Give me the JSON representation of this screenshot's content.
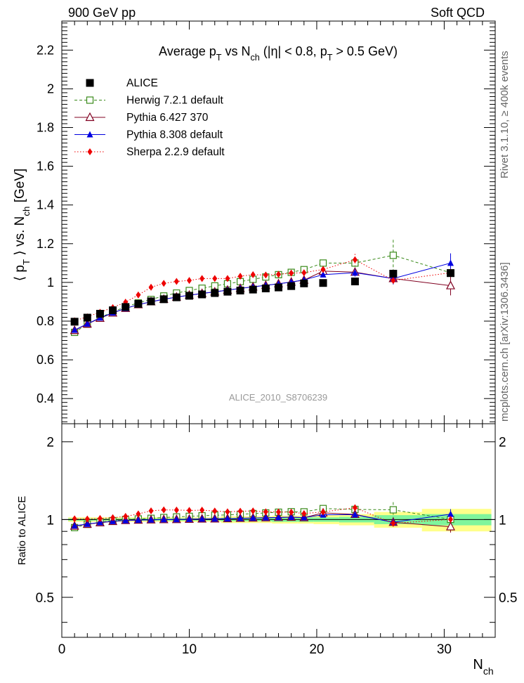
{
  "header": {
    "left": "900 GeV pp",
    "right": "Soft QCD"
  },
  "side_labels": {
    "rivet": "Rivet 3.1.10, ≥ 400k events",
    "mcplots": "mcplots.cern.ch [arXiv:1306.3436]"
  },
  "chart_data": {
    "type": "scatter",
    "title": "Average p_T vs N_ch (|η| < 0.8, p_T > 0.5 GeV)",
    "analysis_label": "ALICE_2010_S8706239",
    "xlabel": "N_ch",
    "ylabel": "⟨ p_T ⟩ vs. N_ch [GeV]",
    "ratio_ylabel": "Ratio to ALICE",
    "xlim": [
      0,
      34
    ],
    "ylim": [
      0.27,
      2.35
    ],
    "ratio_ylim": [
      0.35,
      2.35
    ],
    "x_ticks": [
      0,
      10,
      20,
      30
    ],
    "y_ticks": [
      0.4,
      0.6,
      0.8,
      1,
      1.2,
      1.4,
      1.6,
      1.8,
      2,
      2.2
    ],
    "ratio_ticks": [
      0.5,
      1,
      2
    ],
    "legend_position": "top-left",
    "x": [
      1,
      2,
      3,
      4,
      5,
      6,
      7,
      8,
      9,
      10,
      11,
      12,
      13,
      14,
      15,
      16,
      17,
      18,
      19,
      20.5,
      23,
      26,
      30.5
    ],
    "data": {
      "name": "ALICE",
      "values": [
        0.797,
        0.818,
        0.838,
        0.856,
        0.873,
        0.889,
        0.902,
        0.913,
        0.923,
        0.931,
        0.938,
        0.945,
        0.952,
        0.958,
        0.963,
        0.969,
        0.974,
        0.981,
        0.995,
        0.997,
        1.005,
        1.045,
        1.048
      ],
      "band_inner": [
        0.01,
        0.01,
        0.01,
        0.01,
        0.01,
        0.01,
        0.01,
        0.01,
        0.01,
        0.01,
        0.01,
        0.01,
        0.015,
        0.015,
        0.015,
        0.015,
        0.02,
        0.02,
        0.02,
        0.02,
        0.025,
        0.04,
        0.05
      ],
      "band_outer": [
        0.02,
        0.02,
        0.02,
        0.02,
        0.02,
        0.02,
        0.02,
        0.02,
        0.02,
        0.02,
        0.02,
        0.02,
        0.03,
        0.03,
        0.03,
        0.03,
        0.035,
        0.035,
        0.035,
        0.04,
        0.05,
        0.07,
        0.1
      ]
    },
    "series": [
      {
        "name": "Herwig 7.2.1 default",
        "color": "#3a8a1a",
        "marker": "open-square",
        "line": "dashed",
        "values": [
          0.742,
          0.784,
          0.818,
          0.848,
          0.874,
          0.894,
          0.912,
          0.93,
          0.945,
          0.958,
          0.97,
          0.982,
          0.993,
          1.004,
          1.016,
          1.028,
          1.04,
          1.052,
          1.066,
          1.1,
          1.1,
          1.14,
          1.05
        ],
        "err": [
          0,
          0,
          0,
          0,
          0,
          0,
          0,
          0,
          0,
          0,
          0,
          0,
          0,
          0,
          0,
          0,
          0,
          0,
          0,
          0.01,
          0.02,
          0.08,
          0.02
        ]
      },
      {
        "name": "Pythia 6.427 370",
        "color": "#800020",
        "marker": "open-triangle",
        "line": "solid",
        "values": [
          0.752,
          0.785,
          0.815,
          0.842,
          0.866,
          0.885,
          0.9,
          0.913,
          0.924,
          0.934,
          0.943,
          0.951,
          0.96,
          0.969,
          0.977,
          0.985,
          0.993,
          1.002,
          1.012,
          1.058,
          1.053,
          1.02,
          0.983
        ],
        "err": [
          0,
          0,
          0,
          0,
          0,
          0,
          0,
          0,
          0,
          0,
          0,
          0,
          0,
          0,
          0,
          0,
          0,
          0,
          0,
          0.01,
          0.02,
          0.03,
          0.05
        ]
      },
      {
        "name": "Pythia 8.308 default",
        "color": "#0000e0",
        "marker": "filled-triangle",
        "line": "solid",
        "values": [
          0.754,
          0.786,
          0.817,
          0.843,
          0.866,
          0.885,
          0.9,
          0.913,
          0.924,
          0.934,
          0.943,
          0.951,
          0.96,
          0.969,
          0.977,
          0.985,
          0.993,
          1.002,
          1.013,
          1.04,
          1.05,
          1.02,
          1.1
        ],
        "err": [
          0,
          0,
          0,
          0,
          0,
          0,
          0,
          0,
          0,
          0,
          0,
          0,
          0,
          0,
          0,
          0,
          0,
          0,
          0,
          0.01,
          0.02,
          0.03,
          0.05
        ]
      },
      {
        "name": "Sherpa 2.2.9 default",
        "color": "#ee0000",
        "marker": "filled-diamond",
        "line": "dotted",
        "values": [
          0.802,
          0.822,
          0.846,
          0.87,
          0.898,
          0.935,
          0.975,
          0.995,
          1.005,
          1.01,
          1.02,
          1.02,
          1.02,
          1.032,
          1.04,
          1.038,
          1.042,
          1.048,
          1.05,
          1.067,
          1.117,
          1.01,
          1.05
        ],
        "err": [
          0,
          0,
          0,
          0,
          0,
          0,
          0,
          0,
          0,
          0,
          0,
          0,
          0,
          0,
          0,
          0,
          0,
          0,
          0,
          0.01,
          0.03,
          0.02,
          0.02
        ]
      }
    ]
  }
}
